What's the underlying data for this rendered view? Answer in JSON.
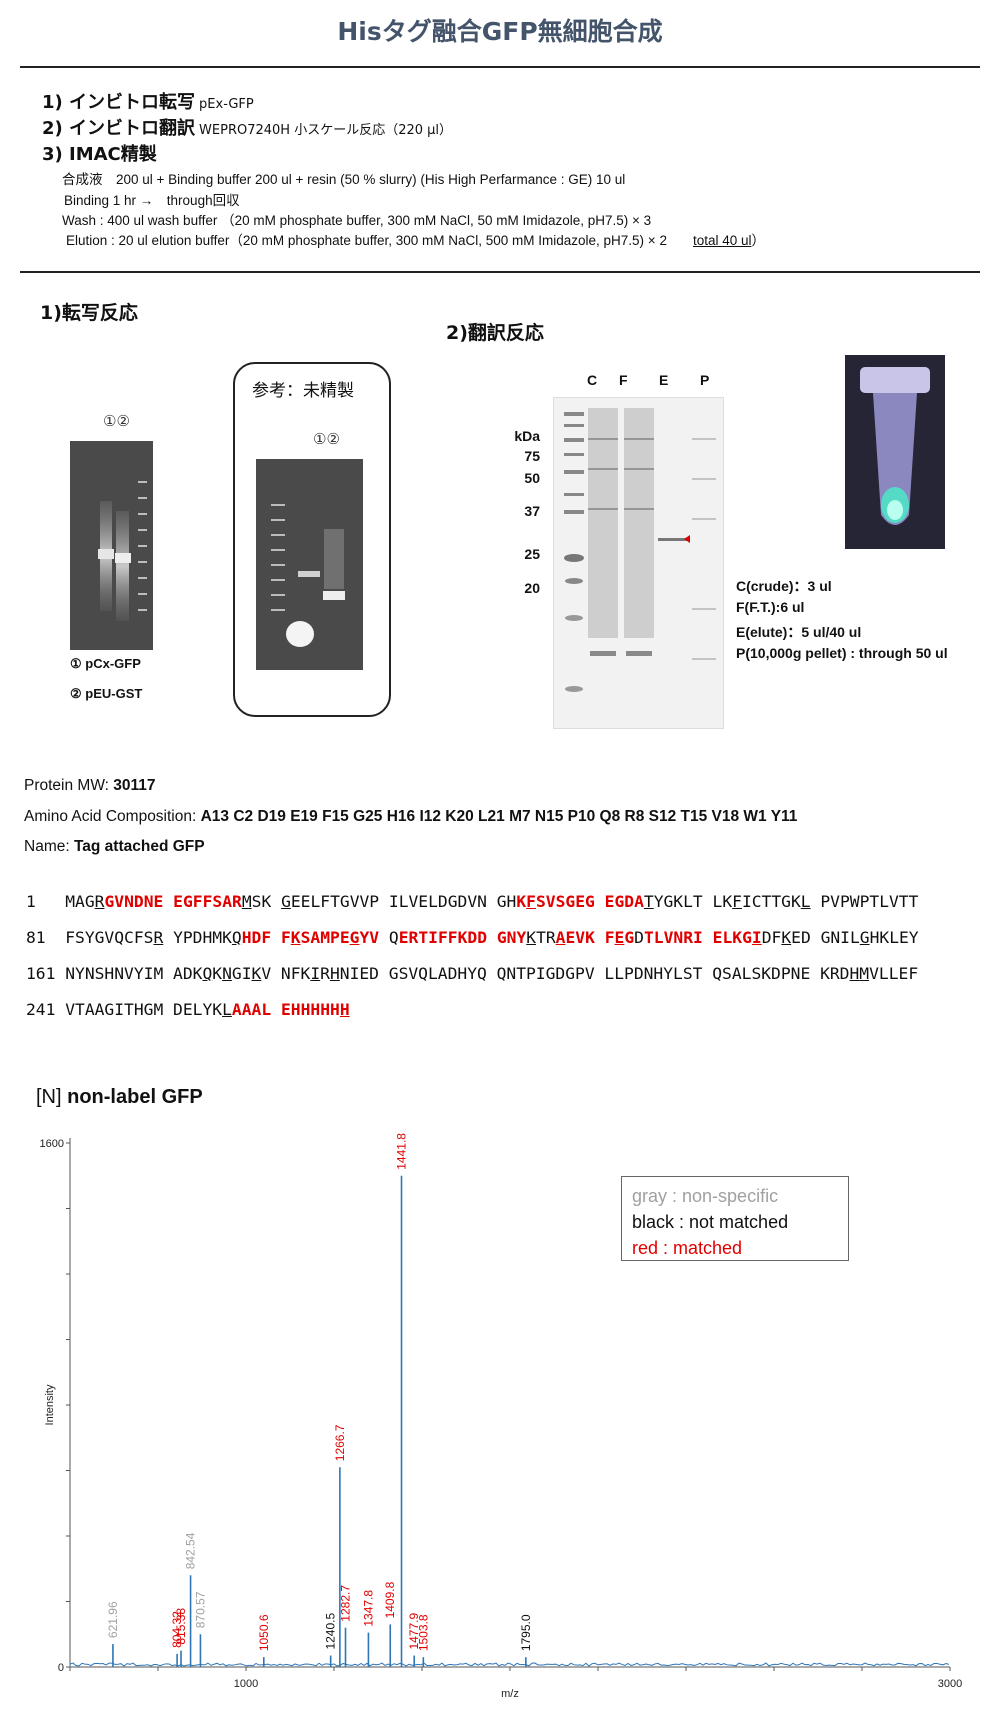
{
  "title": "Hisタグ融合GFP無細胞合成",
  "steps": [
    {
      "label": "1) インビトロ転写",
      "sub": "pEx-GFP"
    },
    {
      "label": "2) インビトロ翻訳",
      "sub": "WEPRO7240H 小スケール反応（220 µl）"
    },
    {
      "label": "3) IMAC精製",
      "sub": ""
    }
  ],
  "imac_details": [
    "合成液　200 ul + Binding buffer 200 ul + resin (50 % slurry) (His High Perfarmance : GE) 10 ul",
    "Binding  1 hr  →　through回収",
    "Wash : 400 ul wash buffer （20 mM phosphate buffer, 300 mM NaCl, 50 mM Imidazole, pH7.5) × 3",
    "Elution : 20 ul elution buffer（20 mM phosphate buffer, 300 mM NaCl, 500 mM Imidazole, pH7.5) × 2"
  ],
  "imac_total": "total 40 ul",
  "imac_total_close": "）",
  "transcription": {
    "heading": "1)転写反応",
    "lanes": "①②",
    "reference_label": "参考：未精製",
    "legend": [
      "① pCx-GFP",
      "② pEU-GST"
    ]
  },
  "translation": {
    "heading": "2)翻訳反応",
    "lane_headers": [
      "C",
      "F",
      "E",
      "P"
    ],
    "kda_label": "kDa",
    "markers": [
      "75",
      "50",
      "37",
      "25",
      "20"
    ],
    "samples": [
      "C(crude)：3 ul",
      "F(F.T.):6 ul",
      "E(elute)：5 ul/40 ul",
      "P(10,000g pellet) : through 50 ul"
    ]
  },
  "protein": {
    "mw_label": "Protein MW: ",
    "mw_value": "30117",
    "aa_label": "Amino Acid Composition: ",
    "aa_value": "A13 C2 D19 E19 F15 G25 H16 I12 K20 L21 M7 N15 P10 Q8 R8 S12 T15 V18 W1 Y11",
    "name_label": "Name: ",
    "name_value": "Tag attached GFP"
  },
  "sequence": [
    {
      "start": "1",
      "text": "MAGRGVNDNE EGFFSARMSK GEELFTGVVP ILVELDGDVN GHKFSVSGEG EGDATYGKLT LKFICTTGKL PVPWPTLVTT"
    },
    {
      "start": "81",
      "text": "FSYGVQCFSR YPDHMKQHDF FKSAMPEGYV QERTIFFKDD GNYKTRAEVK FEGDTLVNRI ELKGIDFKED GNILGHKLEY"
    },
    {
      "start": "161",
      "text": "NYNSHNVYIM ADKQKNGIKV NFKIRHNIED GSVQLADHYQ QNTPIGDGPV LLPDNHYLST QSALSKDPNE KRDHMVLLEF"
    },
    {
      "start": "241",
      "text": "VTAAGITHGM DELYKLAAAL EHHHHHH"
    }
  ],
  "spectrum": {
    "title_prefix": "[N] ",
    "title_bold": "non-label GFP",
    "legend": [
      "gray : non-specific",
      "black : not matched",
      "red : matched"
    ]
  },
  "colors": {
    "title": "#44546a",
    "matched": "#e00000",
    "nonspecific": "#a0a0a0",
    "spectrum": "#2e75b6"
  },
  "chart_data": {
    "type": "line",
    "title": "",
    "xlabel": "m/z",
    "ylabel": "Intensity",
    "xlim": [
      500,
      3000
    ],
    "ylim": [
      0,
      1600
    ],
    "x_ticks": [
      "1000",
      "3000"
    ],
    "y_ticks": [
      "0",
      "1600"
    ],
    "peaks": [
      {
        "mz": 621.96,
        "intensity": 70,
        "label": "621.96",
        "class": "nonspecific"
      },
      {
        "mz": 804.32,
        "intensity": 40,
        "label": "804.32",
        "class": "matched"
      },
      {
        "mz": 815.38,
        "intensity": 50,
        "label": "815.38",
        "class": "matched"
      },
      {
        "mz": 842.54,
        "intensity": 280,
        "label": "842.54",
        "class": "nonspecific"
      },
      {
        "mz": 870.57,
        "intensity": 100,
        "label": "870.57",
        "class": "nonspecific"
      },
      {
        "mz": 1050.6,
        "intensity": 30,
        "label": "1050.6",
        "class": "matched"
      },
      {
        "mz": 1240.5,
        "intensity": 35,
        "label": "1240.5",
        "class": "not-matched"
      },
      {
        "mz": 1266.7,
        "intensity": 610,
        "label": "1266.7",
        "class": "matched"
      },
      {
        "mz": 1282.7,
        "intensity": 120,
        "label": "1282.7",
        "class": "matched"
      },
      {
        "mz": 1347.8,
        "intensity": 105,
        "label": "1347.8",
        "class": "matched"
      },
      {
        "mz": 1409.8,
        "intensity": 130,
        "label": "1409.8",
        "class": "matched"
      },
      {
        "mz": 1441.8,
        "intensity": 1500,
        "label": "1441.8",
        "class": "matched"
      },
      {
        "mz": 1477.9,
        "intensity": 35,
        "label": "1477.9",
        "class": "matched"
      },
      {
        "mz": 1503.8,
        "intensity": 30,
        "label": "1503.8",
        "class": "matched"
      },
      {
        "mz": 1795.0,
        "intensity": 30,
        "label": "1795.0",
        "class": "not-matched"
      }
    ]
  }
}
